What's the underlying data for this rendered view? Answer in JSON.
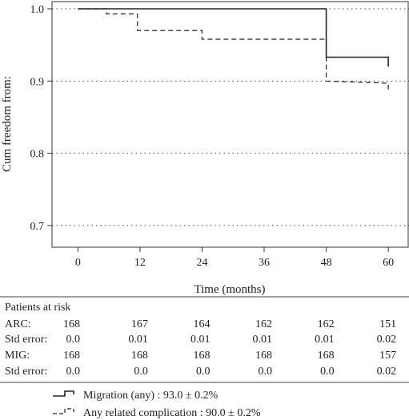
{
  "chart_data": {
    "type": "line",
    "subtype": "kaplan-meier",
    "xlabel": "Time (months)",
    "ylabel": "Cum freedom from:",
    "xlim": [
      -5,
      64
    ],
    "ylim": [
      0.67,
      1.01
    ],
    "x_ticks": [
      0,
      12,
      24,
      36,
      48,
      60
    ],
    "x_tick_labels": [
      "0",
      "12",
      "24",
      "36",
      "48",
      "60"
    ],
    "y_ticks": [
      1.0,
      0.9,
      0.8,
      0.7
    ],
    "y_tick_labels": [
      "1.0",
      "0.9",
      "0.8",
      "0.7"
    ],
    "grid": "horizontal-dotted",
    "series": [
      {
        "name": "Migration (any) : 93.0 ± 0.2%",
        "style": "solid",
        "color": "#222222",
        "steps": [
          [
            0,
            1.0
          ],
          [
            48,
            1.0
          ],
          [
            48,
            0.933
          ],
          [
            60,
            0.933
          ],
          [
            60,
            0.92
          ]
        ]
      },
      {
        "name": "Any related complication : 90.0 ± 0.2%",
        "style": "dashed",
        "color": "#222222",
        "steps": [
          [
            0,
            1.0
          ],
          [
            5.5,
            1.0
          ],
          [
            5.5,
            0.993
          ],
          [
            11.5,
            0.993
          ],
          [
            11.5,
            0.97
          ],
          [
            24,
            0.97
          ],
          [
            24,
            0.958
          ],
          [
            48,
            0.958
          ],
          [
            48,
            0.9
          ],
          [
            60,
            0.897
          ],
          [
            60,
            0.888
          ]
        ]
      }
    ]
  },
  "risk_table": {
    "header": "Patients at risk",
    "rows": [
      {
        "label": "ARC:",
        "values": [
          "168",
          "167",
          "164",
          "162",
          "162",
          "151"
        ]
      },
      {
        "label": "Std error:",
        "values": [
          "0.0",
          "0.01",
          "0.01",
          "0.01",
          "0.01",
          "0.02"
        ]
      },
      {
        "label": "MIG:",
        "values": [
          "168",
          "168",
          "168",
          "168",
          "168",
          "157"
        ]
      },
      {
        "label": "Std error:",
        "values": [
          "0.0",
          "0.0",
          "0.0",
          "0.0",
          "0.0",
          "0.02"
        ]
      }
    ]
  },
  "legend": [
    {
      "text": "Migration (any) : 93.0 ± 0.2%",
      "style": "solid"
    },
    {
      "text": "Any related complication : 90.0 ± 0.2%",
      "style": "dashed"
    }
  ]
}
